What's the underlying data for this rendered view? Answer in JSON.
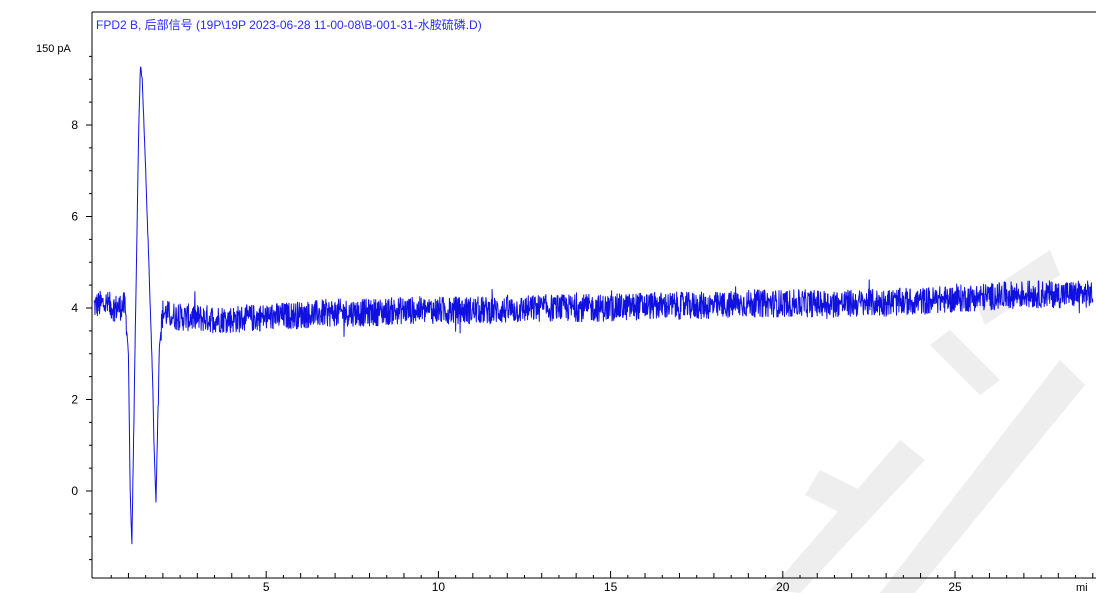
{
  "chart_data": {
    "type": "line",
    "title": "FPD2 B, 后部信号 (19P\\19P 2023-06-28 11-00-08\\B-001-31-水胺硫磷.D)",
    "ylabel": "",
    "xlabel": "",
    "y_unit_label": "150 pA",
    "x_unit_label": "mi",
    "xlim": [
      0.0,
      29.0
    ],
    "ylim": [
      -1.8,
      10.0
    ],
    "x_ticks": [
      5,
      10,
      15,
      20,
      25
    ],
    "x_tick_labels": [
      "5",
      "10",
      "15",
      "20",
      "25"
    ],
    "y_ticks": [
      0,
      2,
      4,
      6,
      8
    ],
    "y_tick_labels": [
      "0",
      "2",
      "4",
      "6",
      "8"
    ],
    "grid": false,
    "colors": {
      "trace": "#1010e0",
      "axis": "#000000",
      "title": "#2b2bff",
      "watermark": "#eeeeee"
    },
    "series": [
      {
        "name": "",
        "x": [
          0.0,
          0.3,
          0.6,
          0.9,
          1.0,
          1.05,
          1.1,
          1.2,
          1.3,
          1.35,
          1.4,
          1.5,
          1.6,
          1.7,
          1.75,
          1.8,
          1.85,
          1.9,
          2.0,
          2.2,
          2.5,
          3.0,
          4.0,
          5.0,
          6.0,
          7.0,
          8.0,
          9.0,
          10.0,
          11.0,
          12.0,
          13.0,
          14.0,
          15.0,
          16.0,
          17.0,
          18.0,
          19.0,
          20.0,
          21.0,
          22.0,
          23.0,
          24.0,
          25.0,
          26.0,
          27.0,
          28.0,
          29.0
        ],
        "y": [
          4.05,
          4.1,
          4.0,
          4.05,
          3.0,
          0.0,
          -1.2,
          3.5,
          8.0,
          9.3,
          9.0,
          7.0,
          4.8,
          2.5,
          0.8,
          -0.2,
          1.5,
          3.2,
          3.9,
          3.85,
          3.8,
          3.78,
          3.75,
          3.8,
          3.85,
          3.9,
          3.9,
          3.95,
          3.95,
          3.95,
          3.95,
          4.0,
          4.0,
          4.0,
          4.05,
          4.05,
          4.05,
          4.1,
          4.1,
          4.1,
          4.1,
          4.12,
          4.15,
          4.2,
          4.25,
          4.3,
          4.3,
          4.3
        ]
      }
    ]
  }
}
